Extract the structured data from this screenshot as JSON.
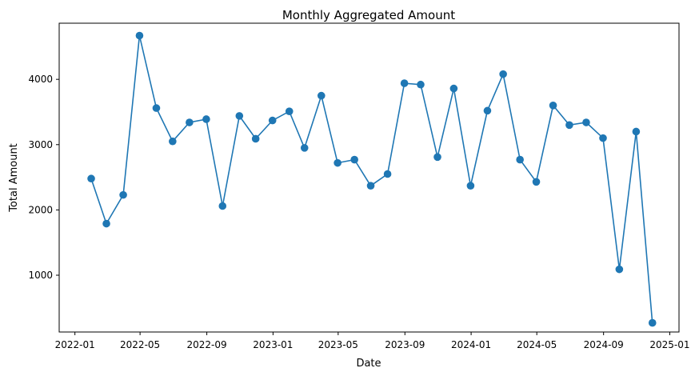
{
  "chart_data": {
    "type": "line",
    "title": "Monthly Aggregated Amount",
    "xlabel": "Date",
    "ylabel": "Total Amount",
    "x_tick_labels": [
      "2022-01",
      "2022-05",
      "2022-09",
      "2023-01",
      "2023-05",
      "2023-09",
      "2024-01",
      "2024-05",
      "2024-09",
      "2025-01"
    ],
    "y_ticks": [
      1000,
      2000,
      3000,
      4000
    ],
    "ylim": [
      130,
      4860
    ],
    "xlim": [
      "2021-12-03",
      "2025-01-18"
    ],
    "grid": false,
    "marker": "circle",
    "line_color": "#1f77b4",
    "series": [
      {
        "x": [
          "2022-01-31",
          "2022-02-28",
          "2022-03-31",
          "2022-04-30",
          "2022-05-31",
          "2022-06-30",
          "2022-07-31",
          "2022-08-31",
          "2022-09-30",
          "2022-10-31",
          "2022-11-30",
          "2022-12-31",
          "2023-01-31",
          "2023-02-28",
          "2023-03-31",
          "2023-04-30",
          "2023-05-31",
          "2023-06-30",
          "2023-07-31",
          "2023-08-31",
          "2023-09-30",
          "2023-10-31",
          "2023-11-30",
          "2023-12-31",
          "2024-01-31",
          "2024-02-29",
          "2024-03-31",
          "2024-04-30",
          "2024-05-31",
          "2024-06-30",
          "2024-07-31",
          "2024-08-31",
          "2024-09-30",
          "2024-10-31",
          "2024-11-30"
        ],
        "values": [
          2480,
          1790,
          2230,
          4670,
          3560,
          3050,
          3340,
          3390,
          2060,
          3440,
          3090,
          3370,
          3510,
          2950,
          3750,
          2720,
          2770,
          2370,
          2550,
          3940,
          3920,
          2810,
          3860,
          2370,
          3520,
          4080,
          2770,
          2430,
          3600,
          3300,
          3340,
          3100,
          1090,
          3200,
          270
        ]
      }
    ]
  }
}
